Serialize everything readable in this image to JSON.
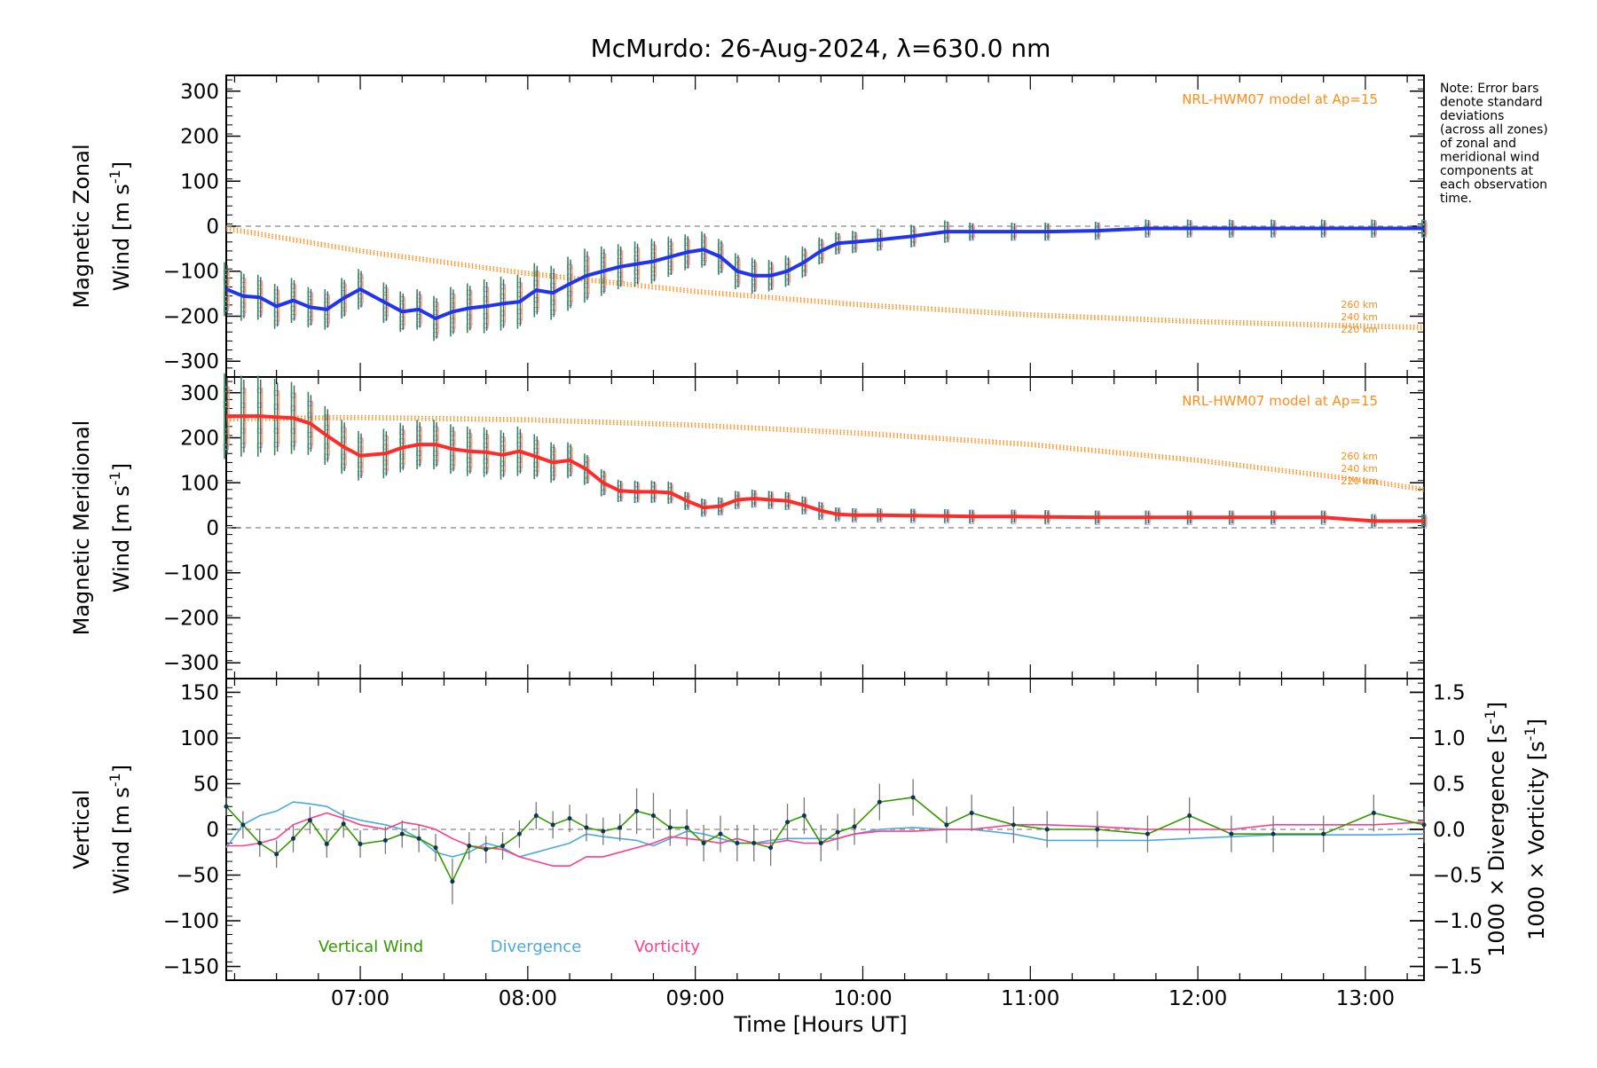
{
  "title": "McMurdo: 26-Aug-2024, λ=630.0 nm",
  "note": [
    "Note: Error bars",
    "denote standard",
    "deviations",
    "(across all zones)",
    "of zonal and",
    "meridional wind",
    "components at",
    "each observation",
    "time."
  ],
  "colors": {
    "zonal": "#2233ee",
    "meridional": "#ff2a2a",
    "vertical": "#339900",
    "divergence": "#4ea9d9",
    "vorticity": "#ff3d8b",
    "model": "#ff8c1a",
    "zones": "#aaaaee"
  },
  "xaxis": {
    "label": "Time [Hours UT]",
    "ticks": [
      "07:00",
      "08:00",
      "09:00",
      "10:00",
      "11:00",
      "12:00",
      "13:00"
    ],
    "range": [
      6.2,
      13.35
    ]
  },
  "chart_data": [
    {
      "type": "line",
      "ylabel_line1": "Magnetic Zonal",
      "ylabel_line2": "Wind [m s",
      "ylabel_sup": "-1",
      "ylabel_end": "]",
      "ylim": [
        -335,
        335
      ],
      "yticks": [
        "300",
        "200",
        "100",
        "0",
        "−100",
        "−200",
        "−300"
      ],
      "model_label": "NRL-HWM07 model at Ap=15",
      "model_alts": [
        "260 km",
        "240 km",
        "220 km"
      ],
      "model_x": [
        6.2,
        7,
        8,
        9,
        10,
        11,
        12,
        13,
        13.35
      ],
      "model_y": [
        -5,
        -55,
        -105,
        -145,
        -175,
        -197,
        -212,
        -222,
        -225
      ],
      "series": [
        {
          "name": "Zonal",
          "x": [
            6.2,
            6.3,
            6.4,
            6.5,
            6.6,
            6.7,
            6.8,
            6.9,
            7.0,
            7.15,
            7.25,
            7.35,
            7.45,
            7.55,
            7.65,
            7.75,
            7.85,
            7.95,
            8.05,
            8.15,
            8.25,
            8.35,
            8.45,
            8.55,
            8.65,
            8.75,
            8.85,
            8.95,
            9.05,
            9.15,
            9.25,
            9.35,
            9.45,
            9.55,
            9.65,
            9.75,
            9.85,
            9.95,
            10.1,
            10.3,
            10.5,
            10.65,
            10.9,
            11.1,
            11.4,
            11.7,
            11.95,
            12.2,
            12.45,
            12.75,
            13.05,
            13.35
          ],
          "y": [
            -140,
            -155,
            -158,
            -178,
            -165,
            -180,
            -185,
            -160,
            -140,
            -170,
            -190,
            -185,
            -205,
            -190,
            -182,
            -178,
            -172,
            -168,
            -142,
            -148,
            -128,
            -110,
            -100,
            -90,
            -84,
            -78,
            -68,
            -58,
            -52,
            -68,
            -100,
            -110,
            -110,
            -100,
            -80,
            -55,
            -38,
            -35,
            -30,
            -22,
            -12,
            -12,
            -12,
            -12,
            -10,
            -5,
            -5,
            -5,
            -5,
            -5,
            -5,
            -5
          ],
          "err": [
            60,
            55,
            50,
            50,
            50,
            45,
            45,
            45,
            45,
            45,
            45,
            45,
            50,
            55,
            55,
            60,
            60,
            60,
            60,
            60,
            60,
            60,
            55,
            50,
            50,
            50,
            45,
            40,
            40,
            40,
            40,
            40,
            35,
            35,
            35,
            30,
            25,
            25,
            25,
            25,
            25,
            20,
            20,
            20,
            20,
            20,
            20,
            20,
            20,
            20,
            20,
            20
          ]
        }
      ]
    },
    {
      "type": "line",
      "ylabel_line1": "Magnetic Meridional",
      "ylabel_line2": "Wind [m s",
      "ylabel_sup": "-1",
      "ylabel_end": "]",
      "ylim": [
        -335,
        335
      ],
      "yticks": [
        "300",
        "200",
        "100",
        "0",
        "−100",
        "−200",
        "−300"
      ],
      "model_label": "NRL-HWM07 model at Ap=15",
      "model_alts": [
        "260 km",
        "240 km",
        "220 km"
      ],
      "model_x": [
        6.2,
        7,
        8,
        9,
        10,
        11,
        12,
        13,
        13.35
      ],
      "model_y": [
        242,
        245,
        240,
        228,
        210,
        185,
        150,
        105,
        85
      ],
      "series": [
        {
          "name": "Meridional",
          "x": [
            6.2,
            6.3,
            6.4,
            6.5,
            6.6,
            6.7,
            6.8,
            6.9,
            7.0,
            7.15,
            7.25,
            7.35,
            7.45,
            7.55,
            7.65,
            7.75,
            7.85,
            7.95,
            8.05,
            8.15,
            8.25,
            8.35,
            8.45,
            8.55,
            8.65,
            8.75,
            8.85,
            8.95,
            9.05,
            9.15,
            9.25,
            9.35,
            9.45,
            9.55,
            9.65,
            9.75,
            9.85,
            9.95,
            10.1,
            10.3,
            10.5,
            10.65,
            10.9,
            11.1,
            11.4,
            11.7,
            11.95,
            12.2,
            12.45,
            12.75,
            13.05,
            13.35
          ],
          "y": [
            248,
            248,
            248,
            246,
            244,
            232,
            205,
            180,
            160,
            165,
            178,
            185,
            185,
            175,
            170,
            168,
            162,
            170,
            158,
            145,
            150,
            130,
            100,
            82,
            80,
            80,
            78,
            60,
            45,
            48,
            62,
            65,
            62,
            60,
            50,
            38,
            30,
            28,
            28,
            27,
            26,
            25,
            25,
            24,
            23,
            23,
            23,
            23,
            23,
            23,
            15,
            15
          ],
          "err": [
            95,
            90,
            90,
            85,
            80,
            70,
            65,
            60,
            55,
            55,
            55,
            55,
            55,
            55,
            55,
            55,
            55,
            55,
            50,
            45,
            40,
            35,
            30,
            25,
            25,
            25,
            25,
            20,
            20,
            20,
            20,
            20,
            20,
            20,
            20,
            20,
            15,
            15,
            15,
            15,
            15,
            15,
            15,
            15,
            15,
            15,
            15,
            15,
            15,
            15,
            15,
            15
          ]
        }
      ]
    },
    {
      "type": "line",
      "ylabel_line1": "Vertical",
      "ylabel_line2": "Wind [m s",
      "ylabel_sup": "-1",
      "ylabel_end": "]",
      "ylim": [
        -165,
        165
      ],
      "yticks": [
        "150",
        "100",
        "50",
        "0",
        "−50",
        "−100",
        "−150"
      ],
      "ylim_right": [
        -1.65,
        1.65
      ],
      "yticks_right": [
        "1.5",
        "1.0",
        "0.5",
        "0.0",
        "−0.5",
        "−1.0",
        "−1.5"
      ],
      "ylabel_right_div": "1000 × Divergence [s",
      "ylabel_right_vort": "1000 × Vorticity [s",
      "ylabel_right_sup": "-1",
      "ylabel_right_end": "]",
      "legend": [
        "Vertical Wind",
        "Divergence",
        "Vorticity"
      ],
      "series": [
        {
          "name": "Vertical Wind",
          "x": [
            6.2,
            6.3,
            6.4,
            6.5,
            6.6,
            6.7,
            6.8,
            6.9,
            7.0,
            7.15,
            7.25,
            7.35,
            7.45,
            7.55,
            7.65,
            7.75,
            7.85,
            7.95,
            8.05,
            8.15,
            8.25,
            8.35,
            8.45,
            8.55,
            8.65,
            8.75,
            8.85,
            8.95,
            9.05,
            9.15,
            9.25,
            9.35,
            9.45,
            9.55,
            9.65,
            9.75,
            9.85,
            9.95,
            10.1,
            10.3,
            10.5,
            10.65,
            10.9,
            11.1,
            11.4,
            11.7,
            11.95,
            12.2,
            12.45,
            12.75,
            13.05,
            13.35
          ],
          "y": [
            25,
            5,
            -15,
            -27,
            -10,
            10,
            -16,
            6,
            -16,
            -12,
            -5,
            -10,
            -20,
            -57,
            -18,
            -22,
            -18,
            -5,
            15,
            5,
            12,
            2,
            -2,
            2,
            20,
            15,
            2,
            2,
            -15,
            -5,
            -15,
            -15,
            -20,
            8,
            15,
            -15,
            -3,
            3,
            30,
            35,
            5,
            18,
            5,
            0,
            0,
            -5,
            15,
            -5,
            -5,
            -5,
            18,
            5
          ],
          "err": [
            10,
            15,
            15,
            15,
            15,
            15,
            15,
            15,
            15,
            15,
            15,
            15,
            15,
            25,
            15,
            15,
            15,
            15,
            15,
            15,
            15,
            15,
            15,
            15,
            25,
            25,
            20,
            20,
            20,
            20,
            20,
            20,
            20,
            20,
            20,
            20,
            20,
            20,
            20,
            20,
            20,
            20,
            20,
            20,
            20,
            20,
            20,
            20,
            20,
            20,
            20,
            20
          ]
        },
        {
          "name": "Divergence",
          "x": [
            6.2,
            6.3,
            6.4,
            6.5,
            6.6,
            6.7,
            6.8,
            6.9,
            7.0,
            7.15,
            7.25,
            7.35,
            7.45,
            7.55,
            7.65,
            7.75,
            7.85,
            7.95,
            8.05,
            8.15,
            8.25,
            8.35,
            8.45,
            8.55,
            8.65,
            8.75,
            8.85,
            8.95,
            9.05,
            9.15,
            9.25,
            9.35,
            9.45,
            9.55,
            9.65,
            9.75,
            9.85,
            9.95,
            10.1,
            10.3,
            10.5,
            10.65,
            10.9,
            11.1,
            11.4,
            11.7,
            11.95,
            12.2,
            12.45,
            12.75,
            13.05,
            13.35
          ],
          "y": [
            -0.2,
            0.05,
            0.15,
            0.2,
            0.3,
            0.28,
            0.25,
            0.15,
            0.1,
            0.05,
            0,
            -0.1,
            -0.25,
            -0.3,
            -0.25,
            -0.15,
            -0.2,
            -0.3,
            -0.25,
            -0.2,
            -0.15,
            -0.05,
            -0.08,
            -0.1,
            -0.12,
            -0.18,
            -0.1,
            -0.02,
            -0.05,
            -0.1,
            -0.15,
            -0.15,
            -0.12,
            -0.1,
            -0.1,
            -0.1,
            -0.1,
            -0.05,
            0.0,
            0.02,
            0.0,
            0.0,
            -0.05,
            -0.12,
            -0.12,
            -0.12,
            -0.1,
            -0.08,
            -0.06,
            -0.06,
            -0.06,
            -0.05
          ]
        },
        {
          "name": "Vorticity",
          "x": [
            6.2,
            6.3,
            6.4,
            6.5,
            6.6,
            6.7,
            6.8,
            6.9,
            7.0,
            7.15,
            7.25,
            7.35,
            7.45,
            7.55,
            7.65,
            7.75,
            7.85,
            7.95,
            8.05,
            8.15,
            8.25,
            8.35,
            8.45,
            8.55,
            8.65,
            8.75,
            8.85,
            8.95,
            9.05,
            9.15,
            9.25,
            9.35,
            9.45,
            9.55,
            9.65,
            9.75,
            9.85,
            9.95,
            10.1,
            10.3,
            10.5,
            10.65,
            10.9,
            11.1,
            11.4,
            11.7,
            11.95,
            12.2,
            12.45,
            12.75,
            13.05,
            13.35
          ],
          "y": [
            -0.18,
            -0.18,
            -0.15,
            -0.1,
            0.05,
            0.12,
            0.18,
            0.12,
            0.05,
            0.0,
            0.08,
            0.05,
            0.0,
            -0.1,
            -0.18,
            -0.2,
            -0.22,
            -0.3,
            -0.35,
            -0.4,
            -0.4,
            -0.3,
            -0.3,
            -0.25,
            -0.2,
            -0.15,
            -0.08,
            -0.1,
            -0.12,
            -0.15,
            -0.1,
            -0.15,
            -0.15,
            -0.12,
            -0.15,
            -0.15,
            -0.1,
            -0.05,
            -0.02,
            -0.02,
            0.0,
            0.0,
            0.05,
            0.05,
            0.03,
            0.0,
            0.0,
            0.0,
            0.05,
            0.05,
            0.05,
            0.08
          ]
        }
      ]
    }
  ]
}
